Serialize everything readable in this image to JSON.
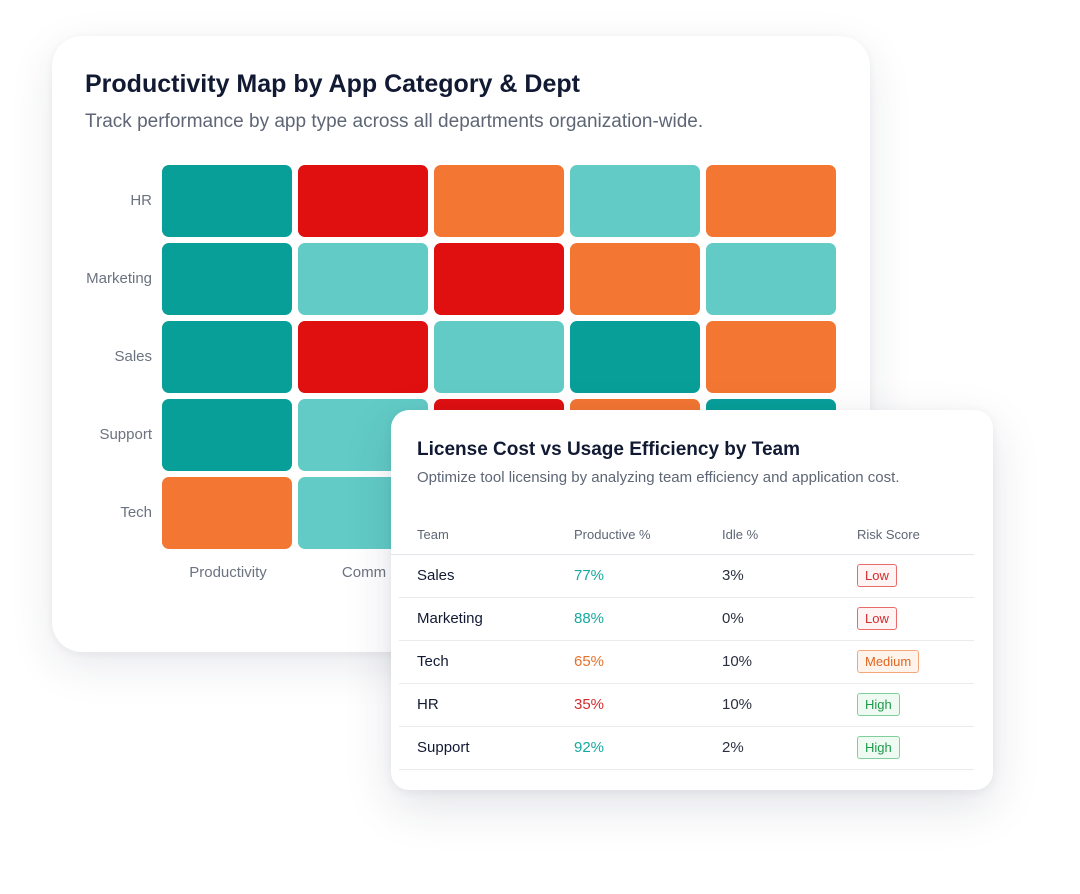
{
  "heatmap_card": {
    "title": "Productivity Map by App Category & Dept",
    "subtitle": "Track performance by app type across all departments organization-wide."
  },
  "chart_data": [
    {
      "type": "heatmap",
      "title": "Productivity Map by App Category & Dept",
      "subtitle": "Track performance by app type across all departments organization-wide.",
      "rows": [
        "HR",
        "Marketing",
        "Sales",
        "Support",
        "Tech"
      ],
      "columns_visible": [
        "Productivity",
        "Comm"
      ],
      "levels": {
        "dark-teal": "#089f99",
        "light-teal": "#62cbc6",
        "orange": "#f37632",
        "red": "#e01011"
      },
      "cells": [
        [
          "dark-teal",
          "red",
          "orange",
          "light-teal",
          "orange"
        ],
        [
          "dark-teal",
          "light-teal",
          "red",
          "orange",
          "light-teal"
        ],
        [
          "dark-teal",
          "red",
          "light-teal",
          "dark-teal",
          "orange"
        ],
        [
          "dark-teal",
          "light-teal",
          "red",
          "orange",
          "dark-teal"
        ],
        [
          "orange",
          "light-teal",
          null,
          null,
          null
        ]
      ],
      "legend": "none",
      "grid": false
    },
    {
      "type": "table",
      "title": "License Cost vs Usage Efficiency by Team",
      "subtitle": "Optimize tool licensing by analyzing team efficiency and application cost.",
      "columns": [
        "Team",
        "Productive %",
        "Idle %",
        "Risk Score"
      ],
      "rows": [
        [
          "Sales",
          "77%",
          "3%",
          "Low"
        ],
        [
          "Marketing",
          "88%",
          "0%",
          "Low"
        ],
        [
          "Tech",
          "65%",
          "10%",
          "Medium"
        ],
        [
          "HR",
          "35%",
          "10%",
          "High"
        ],
        [
          "Support",
          "92%",
          "2%",
          "High"
        ]
      ]
    }
  ],
  "table_card": {
    "title": "License Cost vs Usage Efficiency by Team",
    "subtitle": "Optimize tool licensing by analyzing team efficiency and application cost.",
    "headers": {
      "team": "Team",
      "productive": "Productive %",
      "idle": "Idle %",
      "risk": "Risk Score"
    },
    "rows": [
      {
        "team": "Sales",
        "productive": "77%",
        "productive_color": "#16a99f",
        "idle": "3%",
        "risk": "Low",
        "risk_level": "low"
      },
      {
        "team": "Marketing",
        "productive": "88%",
        "productive_color": "#16a99f",
        "idle": "0%",
        "risk": "Low",
        "risk_level": "low"
      },
      {
        "team": "Tech",
        "productive": "65%",
        "productive_color": "#e8712b",
        "idle": "10%",
        "risk": "Medium",
        "risk_level": "medium"
      },
      {
        "team": "HR",
        "productive": "35%",
        "productive_color": "#d42b2b",
        "idle": "10%",
        "risk": "High",
        "risk_level": "high"
      },
      {
        "team": "Support",
        "productive": "92%",
        "productive_color": "#16a99f",
        "idle": "2%",
        "risk": "High",
        "risk_level": "high"
      }
    ],
    "badge_colors": {
      "low": {
        "text": "#d42b2b",
        "border": "#e86a6a",
        "bg": "#fff4f4"
      },
      "medium": {
        "text": "#e0651e",
        "border": "#f3a77a",
        "bg": "#fff4ec"
      },
      "high": {
        "text": "#1e9a4a",
        "border": "#7fcf9a",
        "bg": "#eefaf2"
      }
    }
  }
}
